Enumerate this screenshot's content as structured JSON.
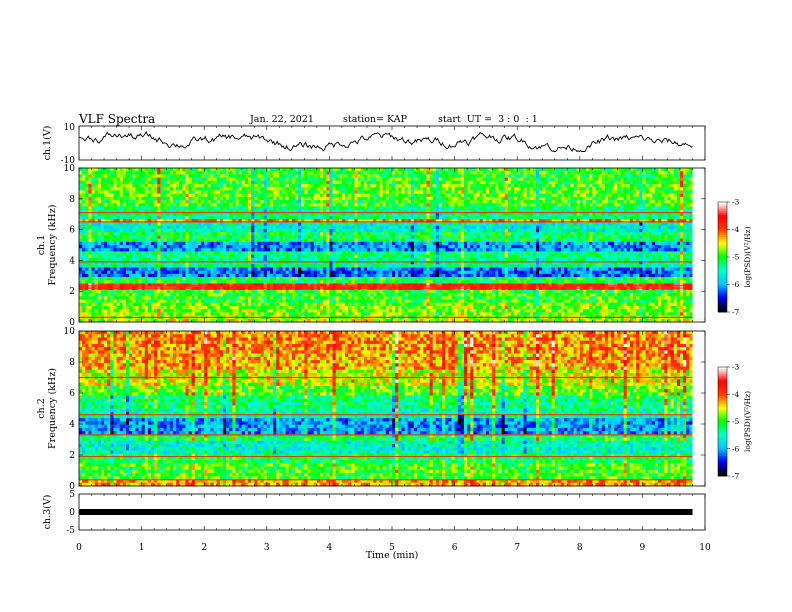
{
  "header": {
    "title": "VLF Spectra",
    "date": "Jan. 22, 2021",
    "station": "station= KAP",
    "start_ut": "start  UT =  3 : 0  : 1"
  },
  "colorbar": {
    "label": "log(PSD)(V²/Hz)",
    "ticks": [
      "-3",
      "-4",
      "-5",
      "-6",
      "-7"
    ],
    "colors": [
      "#ffffff",
      "#ff0000",
      "#ffff00",
      "#00ff00",
      "#00ffff",
      "#0000ff",
      "#000000"
    ]
  },
  "chart_data": [
    {
      "type": "line",
      "panel": "ch1-waveform",
      "ylabel": "ch.1(V)",
      "ylim": [
        -10,
        10
      ],
      "yticks": [
        "10",
        "-10"
      ],
      "xlim": [
        0,
        10
      ],
      "x_end": 9.8,
      "line_color": "#000000",
      "description": "noisy waveform oscillating between about -4 and 6 V"
    },
    {
      "type": "heatmap",
      "panel": "ch1-spectrogram",
      "ylabel": "ch.1 Frequency (kHz)",
      "ylim": [
        0,
        10
      ],
      "yticks": [
        "10",
        "8",
        "6",
        "4",
        "2",
        "0"
      ],
      "xlim": [
        0,
        10
      ],
      "x_end": 9.8,
      "zlim": [
        -7,
        -3
      ],
      "bands_kHz_level": [
        [
          0,
          0.3,
          -4.6
        ],
        [
          0.3,
          1.2,
          -4.8
        ],
        [
          1.2,
          2.1,
          -5.0
        ],
        [
          2.1,
          2.4,
          -3.7
        ],
        [
          2.4,
          2.9,
          -5.1
        ],
        [
          2.9,
          3.5,
          -6.2
        ],
        [
          3.5,
          4.1,
          -5.4
        ],
        [
          4.1,
          4.6,
          -5.3
        ],
        [
          4.6,
          5.2,
          -6.1
        ],
        [
          5.2,
          5.8,
          -5.2
        ],
        [
          5.8,
          6.4,
          -5.6
        ],
        [
          6.4,
          6.7,
          -4.2
        ],
        [
          6.7,
          7.4,
          -5.3
        ],
        [
          7.4,
          8.0,
          -5.0
        ],
        [
          8.0,
          9.0,
          -4.9
        ],
        [
          9.0,
          10.0,
          -5.0
        ]
      ],
      "lines_kHz": [
        0.3,
        2.2,
        2.35,
        3.9,
        6.5,
        7.1
      ]
    },
    {
      "type": "heatmap",
      "panel": "ch2-spectrogram",
      "ylabel": "ch.2 Frequency (kHz)",
      "ylim": [
        0,
        10
      ],
      "yticks": [
        "10",
        "8",
        "6",
        "4",
        "2",
        "0"
      ],
      "xlim": [
        0,
        10
      ],
      "x_end": 9.8,
      "zlim": [
        -7,
        -3
      ],
      "bands_kHz_level": [
        [
          0,
          0.4,
          -4.3
        ],
        [
          0.4,
          1.4,
          -5.0
        ],
        [
          1.4,
          2.0,
          -5.2
        ],
        [
          2.0,
          2.9,
          -5.6
        ],
        [
          2.9,
          3.4,
          -5.2
        ],
        [
          3.4,
          4.3,
          -6.1
        ],
        [
          4.3,
          5.0,
          -5.5
        ],
        [
          5.0,
          5.8,
          -5.3
        ],
        [
          5.8,
          6.5,
          -4.9
        ],
        [
          6.5,
          7.5,
          -4.6
        ],
        [
          7.5,
          8.5,
          -4.3
        ],
        [
          8.5,
          10.0,
          -4.2
        ]
      ],
      "lines_kHz": [
        0.4,
        1.9,
        3.3,
        4.6,
        7.0
      ]
    },
    {
      "type": "line",
      "panel": "ch3-signal",
      "ylabel": "ch.3(V)",
      "ylim": [
        -5,
        5
      ],
      "yticks": [
        "5",
        "0",
        "-5"
      ],
      "xlim": [
        0,
        10
      ],
      "x_end": 9.8,
      "value_V": 0,
      "line_color": "#000000"
    }
  ],
  "x_axis": {
    "label": "Time (min)",
    "ticks": [
      "0",
      "1",
      "2",
      "3",
      "4",
      "5",
      "6",
      "7",
      "8",
      "9",
      "10"
    ]
  }
}
